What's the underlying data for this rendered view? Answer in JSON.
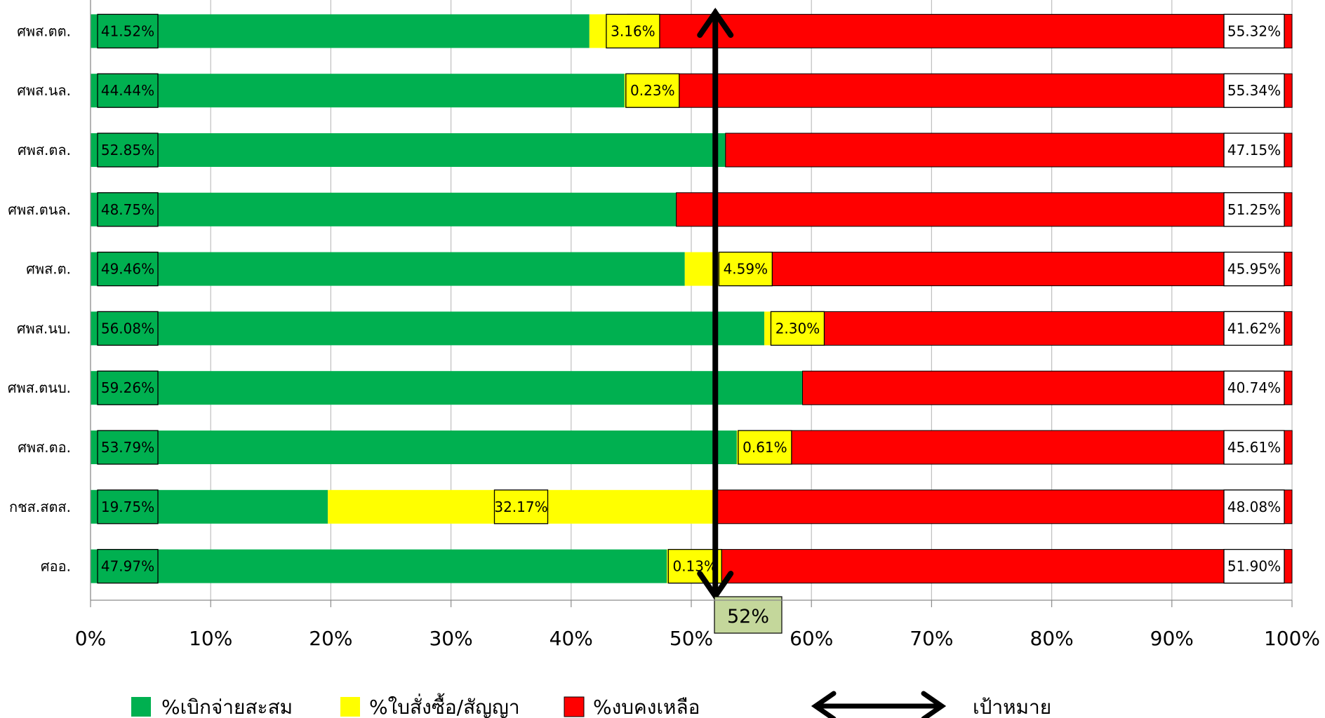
{
  "chart_data": {
    "type": "bar",
    "orientation": "horizontal",
    "stacked": "percent",
    "categories": [
      "ศพส.ตต.",
      "ศพส.นล.",
      "ศพส.ตล.",
      "ศพส.ตนล.",
      "ศพส.ต.",
      "ศพส.นบ.",
      "ศพส.ตนบ.",
      "ศพส.ตอ.",
      "กชส.สตส.",
      "ศออ."
    ],
    "series": [
      {
        "name": "%เบิกจ่ายสะสม",
        "color": "#00b050",
        "values": [
          41.52,
          44.44,
          52.85,
          48.75,
          49.46,
          56.08,
          59.26,
          53.79,
          19.75,
          47.97
        ],
        "labels": [
          "41.52%",
          "44.44%",
          "52.85%",
          "48.75%",
          "49.46%",
          "56.08%",
          "59.26%",
          "53.79%",
          "19.75%",
          "47.97%"
        ]
      },
      {
        "name": "%ใบสั่งซื้อ/สัญญา",
        "color": "#ffff00",
        "values": [
          3.16,
          0.23,
          0.0,
          0.0,
          4.59,
          2.3,
          0.0,
          0.61,
          32.17,
          0.13
        ],
        "labels": [
          "3.16%",
          "0.23%",
          "",
          "",
          "4.59%",
          "2.30%",
          "",
          "0.61%",
          "32.17%",
          "0.13%"
        ]
      },
      {
        "name": "%งบคงเหลือ",
        "color": "#ff0000",
        "values": [
          55.32,
          55.34,
          47.15,
          51.25,
          45.95,
          41.62,
          40.74,
          45.61,
          48.08,
          51.9
        ],
        "labels": [
          "55.32%",
          "55.34%",
          "47.15%",
          "51.25%",
          "45.95%",
          "41.62%",
          "40.74%",
          "45.61%",
          "48.08%",
          "51.90%"
        ]
      }
    ],
    "xlim": [
      0,
      100
    ],
    "xticks": [
      "0%",
      "10%",
      "20%",
      "30%",
      "40%",
      "50%",
      "60%",
      "70%",
      "80%",
      "90%",
      "100%"
    ],
    "grid": "vertical",
    "target": {
      "value": 52,
      "label": "52%",
      "legend_name": "เป้าหมาย"
    },
    "legend_position": "bottom",
    "title": "",
    "xlabel": "",
    "ylabel": ""
  }
}
